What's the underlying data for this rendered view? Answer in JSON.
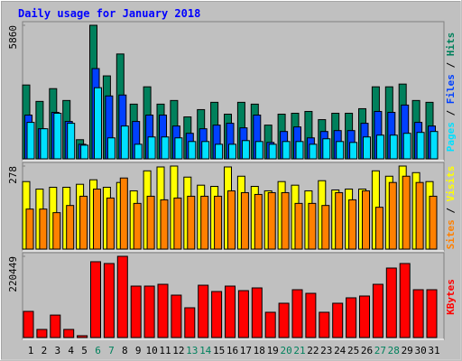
{
  "chart_data": {
    "type": "bar",
    "title": "Daily usage for January 2018",
    "categories": [
      "1",
      "2",
      "3",
      "4",
      "5",
      "6",
      "7",
      "8",
      "9",
      "10",
      "11",
      "12",
      "13",
      "14",
      "15",
      "16",
      "17",
      "18",
      "19",
      "20",
      "21",
      "22",
      "23",
      "24",
      "25",
      "26",
      "27",
      "28",
      "29",
      "30",
      "31"
    ],
    "category_colors": [
      "#000000",
      "#000000",
      "#000000",
      "#000000",
      "#000000",
      "#00805c",
      "#00805c",
      "#000000",
      "#000000",
      "#000000",
      "#000000",
      "#000000",
      "#00805c",
      "#00805c",
      "#000000",
      "#000000",
      "#000000",
      "#000000",
      "#000000",
      "#00805c",
      "#00805c",
      "#000000",
      "#000000",
      "#000000",
      "#000000",
      "#000000",
      "#00805c",
      "#00805c",
      "#000000",
      "#000000",
      "#000000"
    ],
    "legend_separator": " / ",
    "panels": [
      {
        "ylim": [
          0,
          5860
        ],
        "yticks": [
          5860
        ],
        "series": [
          {
            "name": "Hits",
            "color": "#00805c",
            "values": [
              3240,
              2520,
              3080,
              2560,
              840,
              5860,
              3640,
              4600,
              2400,
              3160,
              2400,
              2560,
              1840,
              2160,
              2480,
              1960,
              2480,
              2400,
              1480,
              1960,
              2000,
              2080,
              1720,
              2000,
              2000,
              2200,
              3160,
              3160,
              3280,
              2560,
              2480
            ]
          },
          {
            "name": "Files",
            "color": "#0040ff",
            "values": [
              1920,
              1320,
              2040,
              1640,
              640,
              3960,
              2760,
              2800,
              1640,
              1920,
              1920,
              1440,
              1120,
              1320,
              1480,
              1560,
              1360,
              1920,
              720,
              1200,
              1400,
              920,
              1200,
              1240,
              1240,
              1560,
              2080,
              2040,
              2360,
              1600,
              1440
            ]
          },
          {
            "name": "Pages",
            "color": "#00e0ff",
            "values": [
              1600,
              1320,
              2000,
              1560,
              600,
              3120,
              920,
              1440,
              640,
              960,
              960,
              920,
              760,
              760,
              640,
              640,
              800,
              760,
              640,
              760,
              760,
              640,
              880,
              760,
              720,
              960,
              1040,
              1040,
              1120,
              1160,
              1200
            ]
          }
        ]
      },
      {
        "ylim": [
          0,
          278
        ],
        "yticks": [
          278
        ],
        "series": [
          {
            "name": "Visits",
            "color": "#ffff00",
            "values": [
              226,
              201,
              207,
              207,
              217,
              232,
              207,
              223,
              195,
              262,
              275,
              278,
              241,
              214,
              210,
              275,
              244,
              210,
              195,
              226,
              214,
              195,
              229,
              198,
              201,
              201,
              262,
              244,
              278,
              256,
              226
            ]
          },
          {
            "name": "Sites",
            "color": "#ff8000",
            "values": [
              134,
              134,
              122,
              146,
              177,
              201,
              171,
              238,
              153,
              177,
              165,
              171,
              177,
              177,
              177,
              195,
              189,
              183,
              189,
              189,
              153,
              153,
              146,
              189,
              165,
              195,
              140,
              223,
              244,
              223,
              177
            ]
          }
        ]
      },
      {
        "ylim": [
          0,
          220449
        ],
        "yticks": [
          220449
        ],
        "series": [
          {
            "name": "KBytes",
            "color": "#ff0000",
            "values": [
              71000,
              22000,
              61000,
              22000,
              5000,
              205800,
              200900,
              220449,
              139600,
              139600,
              144500,
              115100,
              80800,
              142000,
              124900,
              139600,
              127300,
              134700,
              68600,
              93100,
              129800,
              120000,
              68600,
              93100,
              107800,
              112700,
              144500,
              188600,
              200900,
              129800,
              129800
            ]
          }
        ]
      }
    ]
  }
}
